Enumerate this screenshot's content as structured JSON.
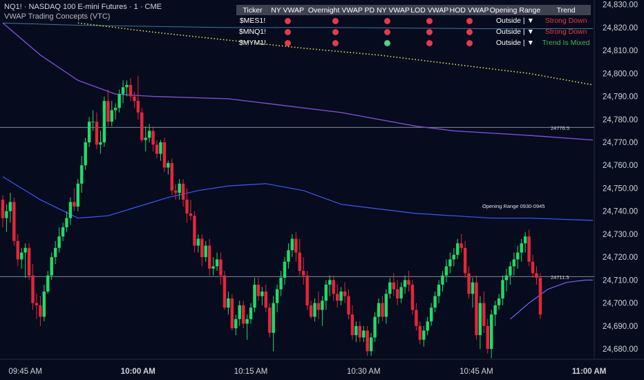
{
  "header": {
    "symbol_line": "NQ1! · NASDAQ 100 E-mini Futures · 1 · CME",
    "indicator_line": "VWAP Trading Concepts (VTC)"
  },
  "colors": {
    "background": "#060b1d",
    "up": "#1fdc6a",
    "down": "#e8253a",
    "vwap_purple": "#7a4fd6",
    "vwap_blue": "#3b5bff",
    "pd_vwap_yellow": "#e8e85a",
    "hline": "#9aa0ab",
    "red_text": "#f23645",
    "green_text": "#4caf50",
    "dot_red": "#e23a50",
    "dot_green": "#4fd17f"
  },
  "table": {
    "headers": [
      "Ticker",
      "NY VWAP",
      "Overnight VWAP",
      "PD NY VWAP",
      "LOD VWAP",
      "HOD VWAP",
      "Opening Range",
      "Trend"
    ],
    "rows": [
      {
        "ticker": "$MES1!",
        "dots": [
          "red",
          "red",
          "red",
          "red",
          "red"
        ],
        "range": "Outside",
        "arrow": "▼",
        "trend": "Strong Down",
        "trend_color": "red"
      },
      {
        "ticker": "$MNQ1!",
        "dots": [
          "red",
          "red",
          "red",
          "red",
          "red"
        ],
        "range": "Outside",
        "arrow": "▼",
        "trend": "Strong Down",
        "trend_color": "red"
      },
      {
        "ticker": "$MYM1!",
        "dots": [
          "red",
          "red",
          "green",
          "red",
          "red"
        ],
        "range": "Outside",
        "arrow": "▼",
        "trend": "Trend Is Mixed",
        "trend_color": "green"
      }
    ]
  },
  "chart_data": {
    "type": "candlestick",
    "x_ticks": [
      {
        "label": "09:45 AM",
        "bold": false,
        "bar": 6
      },
      {
        "label": "10:00 AM",
        "bold": true,
        "bar": 36
      },
      {
        "label": "10:15 AM",
        "bold": false,
        "bar": 66
      },
      {
        "label": "10:30 AM",
        "bold": false,
        "bar": 96
      },
      {
        "label": "10:45 AM",
        "bold": false,
        "bar": 126
      },
      {
        "label": "11:00 AM",
        "bold": true,
        "bar": 156
      }
    ],
    "y_ticks": [
      24680,
      24690,
      24700,
      24710,
      24720,
      24730,
      24740,
      24750,
      24760,
      24770,
      24780,
      24790,
      24800,
      24810,
      24820,
      24830
    ],
    "y_tick_labels": [
      "24,680.00",
      "24,690.00",
      "24,700.00",
      "24,710.00",
      "24,720.00",
      "24,730.00",
      "24,740.00",
      "24,750.00",
      "24,760.00",
      "24,770.00",
      "24,780.00",
      "24,790.00",
      "24,800.00",
      "24,810.00",
      "24,820.00",
      "24,830.00"
    ],
    "ylim": [
      24675.5,
      24832
    ],
    "hlines": [
      {
        "value": 24776.5,
        "label": "24776.5"
      },
      {
        "value": 24711.5,
        "label": "24711.5"
      }
    ],
    "range_label": "Opening Range 0930-0945",
    "candles": [
      [
        24745,
        24747,
        24733,
        24737
      ],
      [
        24737,
        24743,
        24731,
        24740
      ],
      [
        24740,
        24748,
        24735,
        24744
      ],
      [
        24744,
        24746,
        24725,
        24727
      ],
      [
        24727,
        24730,
        24716,
        24719
      ],
      [
        24719,
        24724,
        24715,
        24722
      ],
      [
        24722,
        24726,
        24711,
        24724
      ],
      [
        24724,
        24726,
        24710,
        24712
      ],
      [
        24712,
        24717,
        24697,
        24700
      ],
      [
        24700,
        24704,
        24693,
        24699
      ],
      [
        24699,
        24703,
        24690,
        24694
      ],
      [
        24694,
        24708,
        24692,
        24705
      ],
      [
        24705,
        24714,
        24704,
        24712
      ],
      [
        24712,
        24722,
        24710,
        24720
      ],
      [
        24720,
        24727,
        24717,
        24724
      ],
      [
        24724,
        24733,
        24722,
        24729
      ],
      [
        24729,
        24735,
        24727,
        24733
      ],
      [
        24733,
        24740,
        24731,
        24737
      ],
      [
        24737,
        24746,
        24734,
        24744
      ],
      [
        24744,
        24750,
        24740,
        24742
      ],
      [
        24742,
        24754,
        24740,
        24752
      ],
      [
        24752,
        24764,
        24748,
        24760
      ],
      [
        24760,
        24772,
        24758,
        24770
      ],
      [
        24770,
        24781,
        24768,
        24779
      ],
      [
        24779,
        24784,
        24775,
        24779
      ],
      [
        24779,
        24783,
        24767,
        24769
      ],
      [
        24769,
        24775,
        24765,
        24770
      ],
      [
        24770,
        24790,
        24768,
        24788
      ],
      [
        24788,
        24793,
        24777,
        24779
      ],
      [
        24779,
        24788,
        24777,
        24784
      ],
      [
        24784,
        24787,
        24780,
        24785
      ],
      [
        24785,
        24793,
        24783,
        24791
      ],
      [
        24791,
        24797,
        24787,
        24794
      ],
      [
        24794,
        24797,
        24790,
        24795
      ],
      [
        24795,
        24798,
        24788,
        24790
      ],
      [
        24790,
        24792,
        24785,
        24788
      ],
      [
        24788,
        24799,
        24780,
        24783
      ],
      [
        24783,
        24785,
        24770,
        24771
      ],
      [
        24771,
        24777,
        24766,
        24772
      ],
      [
        24772,
        24778,
        24770,
        24775
      ],
      [
        24775,
        24777,
        24766,
        24769
      ],
      [
        24769,
        24771,
        24763,
        24765
      ],
      [
        24765,
        24771,
        24762,
        24770
      ],
      [
        24770,
        24772,
        24757,
        24759
      ],
      [
        24759,
        24762,
        24756,
        24761
      ],
      [
        24761,
        24763,
        24747,
        24749
      ],
      [
        24749,
        24752,
        24745,
        24748
      ],
      [
        24748,
        24754,
        24745,
        24752
      ],
      [
        24752,
        24754,
        24742,
        24745
      ],
      [
        24745,
        24750,
        24735,
        24739
      ],
      [
        24739,
        24745,
        24736,
        24738
      ],
      [
        24738,
        24740,
        24722,
        24725
      ],
      [
        24725,
        24730,
        24722,
        24728
      ],
      [
        24728,
        24730,
        24716,
        24720
      ],
      [
        24720,
        24727,
        24718,
        24725
      ],
      [
        24725,
        24728,
        24712,
        24715
      ],
      [
        24715,
        24720,
        24712,
        24716
      ],
      [
        24716,
        24722,
        24714,
        24719
      ],
      [
        24719,
        24722,
        24708,
        24712
      ],
      [
        24712,
        24714,
        24697,
        24698
      ],
      [
        24698,
        24705,
        24695,
        24702
      ],
      [
        24702,
        24704,
        24688,
        24689
      ],
      [
        24689,
        24695,
        24686,
        24693
      ],
      [
        24693,
        24701,
        24690,
        24699
      ],
      [
        24699,
        24701,
        24689,
        24691
      ],
      [
        24691,
        24695,
        24684,
        24693
      ],
      [
        24693,
        24700,
        24691,
        24698
      ],
      [
        24698,
        24711,
        24696,
        24708
      ],
      [
        24708,
        24711,
        24701,
        24703
      ],
      [
        24703,
        24707,
        24699,
        24705
      ],
      [
        24705,
        24708,
        24696,
        24698
      ],
      [
        24698,
        24700,
        24685,
        24687
      ],
      [
        24687,
        24703,
        24679,
        24700
      ],
      [
        24700,
        24708,
        24696,
        24706
      ],
      [
        24706,
        24714,
        24703,
        24711
      ],
      [
        24711,
        24720,
        24708,
        24718
      ],
      [
        24718,
        24726,
        24715,
        24723
      ],
      [
        24723,
        24730,
        24720,
        24728
      ],
      [
        24728,
        24731,
        24718,
        24722
      ],
      [
        24722,
        24728,
        24712,
        24714
      ],
      [
        24714,
        24720,
        24708,
        24712
      ],
      [
        24712,
        24714,
        24697,
        24699
      ],
      [
        24699,
        24701,
        24693,
        24694
      ],
      [
        24694,
        24702,
        24692,
        24700
      ],
      [
        24700,
        24705,
        24693,
        24697
      ],
      [
        24697,
        24703,
        24690,
        24701
      ],
      [
        24701,
        24710,
        24697,
        24708
      ],
      [
        24708,
        24712,
        24703,
        24710
      ],
      [
        24710,
        24712,
        24701,
        24704
      ],
      [
        24704,
        24708,
        24698,
        24701
      ],
      [
        24701,
        24707,
        24699,
        24705
      ],
      [
        24705,
        24709,
        24700,
        24703
      ],
      [
        24703,
        24706,
        24693,
        24695
      ],
      [
        24695,
        24699,
        24684,
        24686
      ],
      [
        24686,
        24692,
        24683,
        24690
      ],
      [
        24690,
        24692,
        24683,
        24685
      ],
      [
        24685,
        24690,
        24683,
        24688
      ],
      [
        24688,
        24690,
        24677,
        24679
      ],
      [
        24679,
        24687,
        24677,
        24685
      ],
      [
        24685,
        24696,
        24683,
        24694
      ],
      [
        24694,
        24702,
        24691,
        24700
      ],
      [
        24700,
        24703,
        24692,
        24694
      ],
      [
        24694,
        24706,
        24691,
        24704
      ],
      [
        24704,
        24711,
        24702,
        24709
      ],
      [
        24709,
        24713,
        24703,
        24706
      ],
      [
        24706,
        24710,
        24699,
        24702
      ],
      [
        24702,
        24709,
        24700,
        24707
      ],
      [
        24707,
        24712,
        24704,
        24710
      ],
      [
        24710,
        24714,
        24705,
        24708
      ],
      [
        24708,
        24710,
        24695,
        24697
      ],
      [
        24697,
        24700,
        24688,
        24690
      ],
      [
        24690,
        24692,
        24682,
        24684
      ],
      [
        24684,
        24690,
        24681,
        24688
      ],
      [
        24688,
        24694,
        24686,
        24692
      ],
      [
        24692,
        24700,
        24690,
        24698
      ],
      [
        24698,
        24705,
        24696,
        24703
      ],
      [
        24703,
        24710,
        24700,
        24708
      ],
      [
        24708,
        24714,
        24705,
        24712
      ],
      [
        24712,
        24719,
        24709,
        24716
      ],
      [
        24716,
        24722,
        24713,
        24719
      ],
      [
        24719,
        24724,
        24716,
        24721
      ],
      [
        24721,
        24728,
        24719,
        24726
      ],
      [
        24726,
        24730,
        24722,
        24724
      ],
      [
        24724,
        24727,
        24711,
        24713
      ],
      [
        24713,
        24716,
        24702,
        24704
      ],
      [
        24704,
        24711,
        24698,
        24709
      ],
      [
        24709,
        24712,
        24684,
        24686
      ],
      [
        24686,
        24703,
        24680,
        24700
      ],
      [
        24700,
        24705,
        24687,
        24690
      ],
      [
        24690,
        24693,
        24678,
        24680
      ],
      [
        24680,
        24697,
        24676,
        24695
      ],
      [
        24695,
        24701,
        24690,
        24699
      ],
      [
        24699,
        24704,
        24697,
        24702
      ],
      [
        24702,
        24712,
        24699,
        24710
      ],
      [
        24710,
        24715,
        24705,
        24712
      ],
      [
        24712,
        24718,
        24708,
        24716
      ],
      [
        24716,
        24722,
        24712,
        24719
      ],
      [
        24719,
        24725,
        24715,
        24722
      ],
      [
        24722,
        24728,
        24718,
        24726
      ],
      [
        24726,
        24731,
        24722,
        24729
      ],
      [
        24729,
        24732,
        24716,
        24718
      ],
      [
        24718,
        24721,
        24711,
        24713
      ],
      [
        24713,
        24716,
        24708,
        24711
      ],
      [
        24711,
        24713,
        24693,
        24695
      ]
    ],
    "lines": {
      "overnight_vwap": [
        [
          0,
          24822
        ],
        [
          20,
          24821
        ],
        [
          40,
          24820.5
        ],
        [
          60,
          24820
        ],
        [
          90,
          24820
        ],
        [
          130,
          24819.5
        ],
        [
          157,
          24819.5
        ]
      ],
      "pd_ny_vwap": [
        [
          20,
          24822
        ],
        [
          40,
          24818
        ],
        [
          60,
          24814.5
        ],
        [
          80,
          24811
        ],
        [
          100,
          24808
        ],
        [
          120,
          24804
        ],
        [
          140,
          24800
        ],
        [
          157,
          24795
        ]
      ],
      "purple_vwap": [
        [
          0,
          24822
        ],
        [
          10,
          24808
        ],
        [
          20,
          24797
        ],
        [
          30,
          24791
        ],
        [
          40,
          24790
        ],
        [
          60,
          24789
        ],
        [
          70,
          24787
        ],
        [
          80,
          24785
        ],
        [
          90,
          24783
        ],
        [
          100,
          24780
        ],
        [
          110,
          24777
        ],
        [
          120,
          24775
        ],
        [
          130,
          24774
        ],
        [
          140,
          24773
        ],
        [
          157,
          24771
        ]
      ],
      "blue_vwap": [
        [
          0,
          24755
        ],
        [
          10,
          24745
        ],
        [
          20,
          24737
        ],
        [
          28,
          24738
        ],
        [
          36,
          24742
        ],
        [
          44,
          24746
        ],
        [
          52,
          24749
        ],
        [
          60,
          24751
        ],
        [
          70,
          24752
        ],
        [
          80,
          24749
        ],
        [
          90,
          24743
        ],
        [
          100,
          24741
        ],
        [
          110,
          24739
        ],
        [
          120,
          24738
        ],
        [
          130,
          24737
        ],
        [
          140,
          24737
        ],
        [
          157,
          24736
        ]
      ],
      "short_blue": [
        [
          135,
          24693
        ],
        [
          140,
          24700
        ],
        [
          145,
          24706
        ],
        [
          150,
          24709
        ],
        [
          155,
          24710
        ],
        [
          157,
          24710
        ]
      ]
    }
  }
}
